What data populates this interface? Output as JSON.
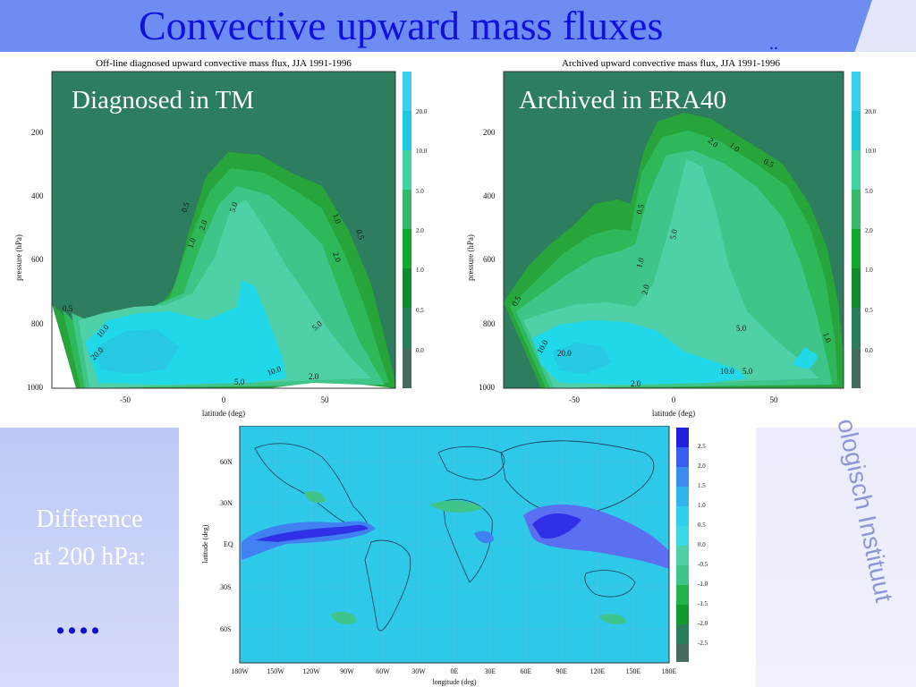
{
  "slide": {
    "title": "Convective upward mass fluxes",
    "title_stub": "..",
    "institute_text": "ologisch Instituut",
    "difference_line1": "Difference",
    "difference_line2": "at 200 hPa:",
    "ellipsis": "....",
    "colors": {
      "title": "#1010e0",
      "band": "#6f8cf2",
      "sidebar": "#b8c4f6",
      "dots": "#1010d0"
    }
  },
  "panels": {
    "left": {
      "overlay": "Diagnosed in TM",
      "plot_title": "Off-line diagnosed upward convective mass flux, JJA 1991-1996"
    },
    "right": {
      "overlay": "Archived in ERA40",
      "plot_title": "Archived upward convective mass flux, JJA 1991-1996"
    }
  },
  "chart_data": [
    {
      "type": "heatmap",
      "title": "Off-line diagnosed upward convective mass flux, JJA 1991-1996",
      "xlabel": "latitude (deg)",
      "ylabel": "pressure (hPa)",
      "xticks": [
        "-50",
        "0",
        "50"
      ],
      "yticks": [
        "200",
        "400",
        "600",
        "800",
        "1000"
      ],
      "xlim": [
        -85,
        85
      ],
      "ylim": [
        1000,
        50
      ],
      "contour_labels": [
        "0.5",
        "1.0",
        "2.0",
        "5.0",
        "10.0",
        "20.0"
      ],
      "colorbar": [
        "20.0",
        "10.0",
        "5.0",
        "2.0",
        "1.0",
        "0.5",
        "0.0"
      ]
    },
    {
      "type": "heatmap",
      "title": "Archived upward convective mass flux, JJA 1991-1996",
      "xlabel": "latitude (deg)",
      "ylabel": "pressure (hPa)",
      "xticks": [
        "-50",
        "0",
        "50"
      ],
      "yticks": [
        "200",
        "400",
        "600",
        "800",
        "1000"
      ],
      "xlim": [
        -85,
        85
      ],
      "ylim": [
        1000,
        50
      ],
      "contour_labels": [
        "0.5",
        "1.0",
        "2.0",
        "5.0",
        "10.0",
        "20.0"
      ],
      "colorbar": [
        "20.0",
        "10.0",
        "5.0",
        "2.0",
        "1.0",
        "0.5",
        "0.0"
      ]
    },
    {
      "type": "heatmap",
      "title": "",
      "xlabel": "longitude (deg)",
      "ylabel": "latitude (deg)",
      "xticks": [
        "180W",
        "150W",
        "120W",
        "90W",
        "60W",
        "30W",
        "0E",
        "30E",
        "60E",
        "90E",
        "120E",
        "150E",
        "180E"
      ],
      "yticks": [
        "60N",
        "30N",
        "EQ",
        "30S",
        "60S"
      ],
      "colorbar": [
        "2.5",
        "2.0",
        "1.5",
        "1.0",
        "0.5",
        "0.0",
        "-0.5",
        "-1.0",
        "-1.5",
        "-2.0",
        "-2.5"
      ]
    }
  ]
}
